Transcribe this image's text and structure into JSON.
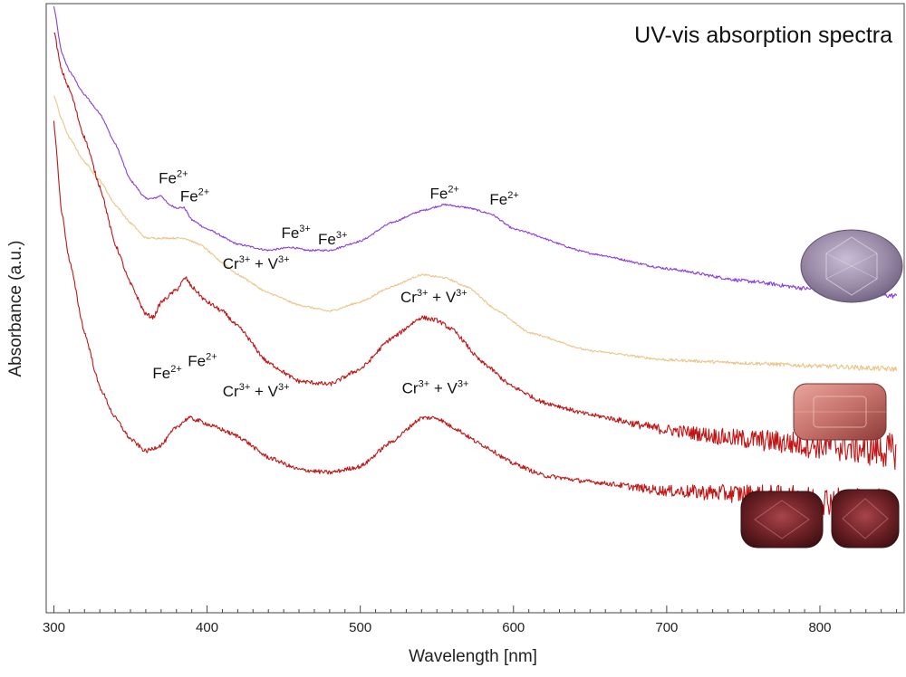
{
  "chart_data": {
    "type": "line",
    "title": "UV-vis absorption spectra",
    "xlabel": "Wavelength [nm]",
    "ylabel": "Absorbance (a.u.)",
    "xlim": [
      295,
      855
    ],
    "ylim": [
      0,
      100
    ],
    "x_ticks": [
      300,
      400,
      500,
      600,
      700,
      800
    ],
    "grid": false,
    "legend": "none",
    "series": [
      {
        "color": "#8a3ce0",
        "x": [
          300,
          305,
          310,
          320,
          330,
          340,
          350,
          360,
          365,
          370,
          375,
          380,
          385,
          390,
          400,
          420,
          440,
          455,
          465,
          475,
          480,
          500,
          520,
          540,
          555,
          570,
          585,
          600,
          650,
          700,
          750,
          800,
          850
        ],
        "y": [
          99.5,
          92,
          89,
          85,
          82,
          77,
          71,
          68,
          68,
          68.5,
          67,
          66.5,
          66.5,
          64.5,
          63,
          60.5,
          59.5,
          60,
          59.5,
          59.5,
          59.5,
          61,
          64,
          66,
          67,
          66.5,
          65.5,
          63,
          59,
          56.5,
          54.5,
          53,
          52
        ],
        "noise": 0.15
      },
      {
        "color": "#ecc488",
        "x": [
          300,
          305,
          310,
          320,
          330,
          340,
          350,
          360,
          370,
          385,
          395,
          410,
          420,
          440,
          460,
          480,
          500,
          520,
          540,
          555,
          570,
          590,
          610,
          650,
          700,
          750,
          800,
          850
        ],
        "y": [
          85,
          81,
          78,
          74,
          71,
          67,
          64,
          61.5,
          61.5,
          61.5,
          60.5,
          57.5,
          55.5,
          52.5,
          50.5,
          49.5,
          51,
          53.5,
          55.5,
          55,
          53.5,
          49.5,
          46,
          43,
          41.5,
          41,
          40.5,
          40
        ],
        "noise": 0.15
      },
      {
        "color": "#c01515",
        "x": [
          300,
          305,
          310,
          320,
          330,
          340,
          350,
          360,
          365,
          370,
          380,
          386,
          390,
          400,
          410,
          420,
          440,
          460,
          480,
          500,
          520,
          540,
          550,
          560,
          580,
          600,
          620,
          650,
          700,
          750,
          800,
          850
        ],
        "y": [
          95.5,
          89,
          86,
          78,
          70,
          60.5,
          54,
          49,
          48.5,
          51,
          53,
          55,
          53.5,
          51,
          49.5,
          47,
          41,
          38,
          37.5,
          40,
          45,
          48.5,
          48,
          46.5,
          41,
          37,
          34.5,
          32.5,
          30,
          28.5,
          27.5,
          26.5
        ],
        "noise": 0.35
      },
      {
        "color": "#c01515",
        "x": [
          300,
          305,
          310,
          320,
          330,
          340,
          350,
          360,
          370,
          380,
          388,
          395,
          405,
          420,
          440,
          460,
          480,
          500,
          520,
          540,
          550,
          560,
          580,
          600,
          620,
          650,
          700,
          750,
          800,
          850
        ],
        "y": [
          80.5,
          66,
          58,
          46,
          37,
          32,
          28.5,
          26.5,
          27.5,
          30.5,
          32,
          31.5,
          30.5,
          29,
          25.5,
          23.5,
          23,
          24,
          28,
          32,
          32,
          30.5,
          27.5,
          24.5,
          22.5,
          21.5,
          20,
          19.5,
          18.5,
          17.5
        ],
        "noise": 0.35
      }
    ],
    "annotations": [
      {
        "species": "Fe",
        "charge": "2+",
        "x": 378,
        "y": 70.5
      },
      {
        "species": "Fe",
        "charge": "2+",
        "x": 392,
        "y": 67.5
      },
      {
        "species": "Fe",
        "charge": "3+",
        "x": 458,
        "y": 61.5
      },
      {
        "species": "Fe",
        "charge": "3+",
        "x": 482,
        "y": 60.5
      },
      {
        "species": "Fe",
        "charge": "2+",
        "x": 555,
        "y": 68
      },
      {
        "species": "Fe",
        "charge": "2+",
        "x": 594,
        "y": 67
      },
      {
        "species": "Cr",
        "charge": "3+",
        "joiner": " + ",
        "species2": "V",
        "charge2": "3+",
        "x": 432,
        "y": 56.5
      },
      {
        "species": "Cr",
        "charge": "3+",
        "joiner": " + ",
        "species2": "V",
        "charge2": "3+",
        "x": 548,
        "y": 51
      },
      {
        "species": "Fe",
        "charge": "2+",
        "x": 374,
        "y": 38.5
      },
      {
        "species": "Fe",
        "charge": "2+",
        "x": 397,
        "y": 40.5
      },
      {
        "species": "Cr",
        "charge": "3+",
        "joiner": " + ",
        "species2": "V",
        "charge2": "3+",
        "x": 432,
        "y": 35.5
      },
      {
        "species": "Cr",
        "charge": "3+",
        "joiner": " + ",
        "species2": "V",
        "charge2": "3+",
        "x": 549,
        "y": 36
      }
    ]
  },
  "gem_colors": {
    "gem_1": "#9a8aa8",
    "gem_2": "#c7726c",
    "gem_3": "#6a2024",
    "gem_4": "#5c2227"
  }
}
